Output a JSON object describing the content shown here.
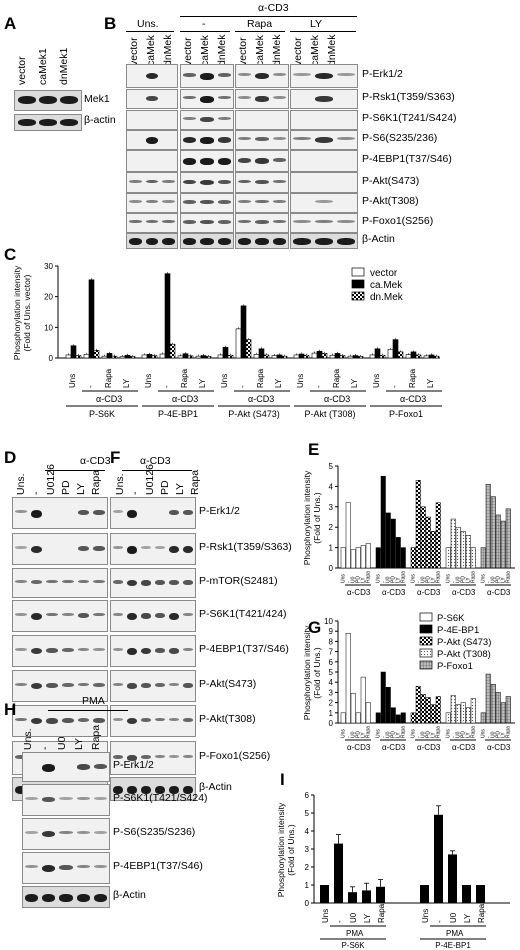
{
  "panels": {
    "A": {
      "label": "A",
      "lanes": [
        "vector",
        "caMek1",
        "dnMek1"
      ],
      "rows": [
        "Mek1",
        "β-actin"
      ]
    },
    "B": {
      "label": "B",
      "treatment_header": "α-CD3",
      "groups": [
        "Uns.",
        "-",
        "Rapa",
        "LY"
      ],
      "lanes": [
        "vector",
        "caMek",
        "dnMek"
      ],
      "rows": [
        "P-Erk1/2",
        "P-Rsk1(T359/S363)",
        "P-S6K1(T241/S424)",
        "P-S6(S235/236)",
        "P-4EBP1(T37/S46)",
        "P-Akt(S473)",
        "P-Akt(T308)",
        "P-Foxo1(S256)",
        "β-Actin"
      ]
    },
    "C": {
      "label": "C",
      "ylabel_line1": "Phosphorylation intensity",
      "ylabel_line2": "(Fold of Uns. vector)",
      "legend": [
        "vector",
        "ca.Mek",
        "dn.Mek"
      ],
      "yticks": [
        "0",
        "10",
        "20",
        "30"
      ],
      "xtick_labels": [
        "Uns",
        "-",
        "Rapa",
        "LY"
      ],
      "treatment": "α-CD3",
      "groups": [
        "P-S6K",
        "P-4E-BP1",
        "P-Akt (S473)",
        "P-Akt (T308)",
        "P-Foxo1"
      ]
    },
    "D": {
      "label": "D",
      "treatment_header": "α-CD3",
      "lanes": [
        "Uns.",
        "-",
        "U0126",
        "PD",
        "LY",
        "Rapa"
      ]
    },
    "F": {
      "label": "F",
      "treatment_header": "α-CD3",
      "lanes": [
        "Uns.",
        "-",
        "U0126",
        "PD",
        "LY",
        "Rapa"
      ],
      "rows": [
        "P-Erk1/2",
        "P-Rsk1(T359/S363)",
        "P-mTOR(S2481)",
        "P-S6K1(T421/424)",
        "P-4EBP1(T37/S46)",
        "P-Akt(S473)",
        "P-Akt(T308)",
        "P-Foxo1(S256)",
        "β-Actin"
      ]
    },
    "E": {
      "label": "E",
      "ylabel_line1": "Phosphorylation intensity",
      "ylabel_line2": "(Fold of Uns.)",
      "yticks": [
        "0",
        "1",
        "2",
        "3",
        "4",
        "5"
      ],
      "xtick_labels": [
        "Uns",
        "-",
        "U0",
        "PD",
        "LY",
        "Rapa"
      ],
      "treatment": "α-CD3"
    },
    "G": {
      "label": "G",
      "ylabel_line1": "Phosphorylation intensity",
      "ylabel_line2": "(Fold of Uns.)",
      "legend": [
        "P-S6K",
        "P-4E-BP1",
        "P-Akt (S473)",
        "P-Akt (T308)",
        "P-Foxo1"
      ],
      "yticks": [
        "0",
        "1",
        "2",
        "3",
        "4",
        "5",
        "6",
        "7",
        "8",
        "9",
        "10"
      ],
      "xtick_labels": [
        "Uns",
        "-",
        "U0",
        "PD",
        "LY",
        "Rapa"
      ],
      "treatment": "α-CD3"
    },
    "H": {
      "label": "H",
      "treatment_header": "PMA",
      "lanes": [
        "Uns.",
        "-",
        "U0",
        "LY",
        "Rapa"
      ],
      "rows": [
        "P-Erk1/2",
        "P-S6K1(T421/S424)",
        "P-S6(S235/S236)",
        "P-4EBP1(T37/S46)",
        "β-Actin"
      ]
    },
    "I": {
      "label": "I",
      "ylabel_line1": "Phosphorylation intensity",
      "ylabel_line2": "(Fold of Uns.)",
      "yticks": [
        "0",
        "1",
        "2",
        "3",
        "4",
        "5",
        "6"
      ],
      "xtick_labels": [
        "Uns",
        "-",
        "U0",
        "LY",
        "Rapa"
      ],
      "treatment": "PMA",
      "groups": [
        "P-S6K",
        "P-4E-BP1"
      ]
    }
  },
  "chart_data": [
    {
      "panel": "C",
      "type": "bar",
      "ylabel": "Phosphorylation intensity (Fold of Uns. vector)",
      "ylim": [
        0,
        30
      ],
      "groups": [
        "P-S6K",
        "P-4E-BP1",
        "P-Akt (S473)",
        "P-Akt (T308)",
        "P-Foxo1"
      ],
      "categories": [
        "Uns",
        "-",
        "Rapa",
        "LY"
      ],
      "series": [
        {
          "name": "vector",
          "values": [
            [
              1.0,
              1.2,
              0.6,
              0.5
            ],
            [
              1.0,
              1.3,
              0.7,
              0.6
            ],
            [
              1.0,
              9.5,
              1.2,
              0.8
            ],
            [
              1.0,
              1.6,
              0.9,
              0.6
            ],
            [
              1.0,
              2.8,
              1.1,
              0.7
            ]
          ]
        },
        {
          "name": "ca.Mek",
          "values": [
            [
              4.0,
              25.5,
              1.5,
              0.9
            ],
            [
              1.2,
              27.5,
              1.4,
              0.8
            ],
            [
              3.5,
              17.0,
              3.0,
              1.0
            ],
            [
              1.3,
              2.2,
              1.5,
              0.8
            ],
            [
              3.0,
              6.0,
              2.0,
              1.0
            ]
          ]
        },
        {
          "name": "dn.Mek",
          "values": [
            [
              0.8,
              2.5,
              0.6,
              0.5
            ],
            [
              0.8,
              4.5,
              0.7,
              0.5
            ],
            [
              0.9,
              6.0,
              1.0,
              0.6
            ],
            [
              0.9,
              1.5,
              0.8,
              0.5
            ],
            [
              0.9,
              2.0,
              1.0,
              0.6
            ]
          ]
        }
      ]
    },
    {
      "panel": "E",
      "type": "bar",
      "ylabel": "Phosphorylation intensity (Fold of Uns.)",
      "ylim": [
        0,
        5
      ],
      "categories": [
        "Uns",
        "-",
        "U0",
        "PD",
        "LY",
        "Rapa"
      ],
      "series": [
        {
          "values": [
            1.0,
            3.2,
            0.9,
            1.0,
            1.1,
            1.2
          ]
        },
        {
          "values": [
            1.0,
            4.5,
            2.7,
            2.4,
            1.5,
            1.0
          ]
        },
        {
          "values": [
            1.0,
            4.3,
            3.0,
            2.5,
            1.8,
            3.2
          ]
        },
        {
          "values": [
            1.0,
            2.4,
            2.0,
            1.8,
            1.6,
            1.0
          ]
        },
        {
          "values": [
            1.0,
            4.1,
            3.5,
            2.6,
            2.3,
            2.9
          ]
        }
      ]
    },
    {
      "panel": "G",
      "type": "bar",
      "ylabel": "Phosphorylation intensity (Fold of Uns.)",
      "ylim": [
        0,
        10
      ],
      "categories": [
        "Uns",
        "-",
        "U0",
        "PD",
        "LY",
        "Rapa"
      ],
      "series": [
        {
          "name": "P-S6K",
          "values": [
            1.0,
            8.8,
            2.9,
            1.0,
            4.5,
            2.0
          ]
        },
        {
          "name": "P-4E-BP1",
          "values": [
            1.0,
            5.0,
            3.5,
            1.5,
            0.8,
            1.0
          ]
        },
        {
          "name": "P-Akt (S473)",
          "values": [
            1.0,
            3.6,
            2.8,
            2.5,
            1.8,
            2.6
          ]
        },
        {
          "name": "P-Akt (T308)",
          "values": [
            1.0,
            2.7,
            1.8,
            2.0,
            1.5,
            2.4
          ]
        },
        {
          "name": "P-Foxo1",
          "values": [
            1.0,
            4.8,
            3.8,
            3.0,
            2.0,
            2.6
          ]
        }
      ]
    },
    {
      "panel": "I",
      "type": "bar",
      "ylabel": "Phosphorylation intensity (Fold of Uns.)",
      "ylim": [
        0,
        6
      ],
      "groups": [
        "P-S6K",
        "P-4E-BP1"
      ],
      "categories": [
        "Uns",
        "-",
        "U0",
        "LY",
        "Rapa"
      ],
      "series": [
        {
          "values": [
            [
              1.0,
              3.3,
              0.6,
              0.7,
              0.9
            ],
            [
              1.0,
              4.9,
              2.7,
              1.0,
              1.0
            ]
          ]
        }
      ]
    }
  ]
}
